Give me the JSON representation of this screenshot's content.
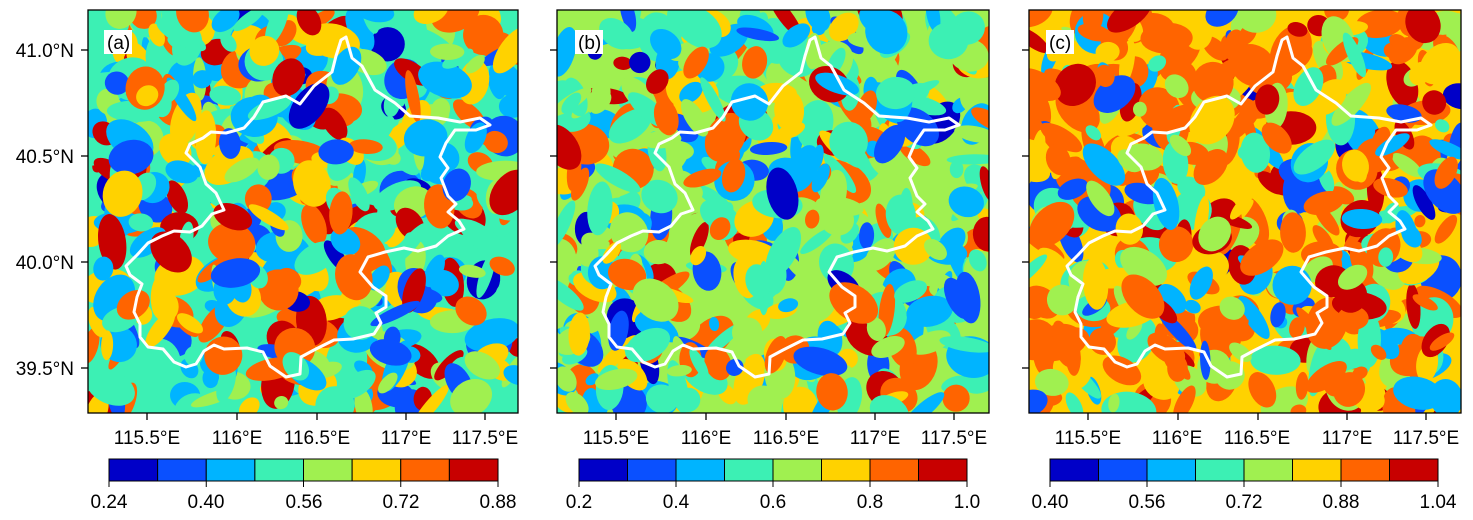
{
  "panels": [
    {
      "label": "(a)",
      "x_ticks": [
        "115.5°E",
        "116°E",
        "116.5°E",
        "117°E",
        "117.5°E"
      ],
      "y_ticks": [
        "41.0°N",
        "40.5°N",
        "40.0°N",
        "39.5°N"
      ],
      "colorbar_labels": [
        "0.24",
        "0.40",
        "0.56",
        "0.72",
        "0.88"
      ]
    },
    {
      "label": "(b)",
      "x_ticks": [
        "115.5°E",
        "116°E",
        "116.5°E",
        "117°E",
        "117.5°E"
      ],
      "y_ticks": [],
      "colorbar_labels": [
        "0.2",
        "0.4",
        "0.6",
        "0.8",
        "1.0"
      ]
    },
    {
      "label": "(c)",
      "x_ticks": [
        "115.5°E",
        "116°E",
        "116.5°E",
        "117°E",
        "117.5°E"
      ],
      "y_ticks": [],
      "colorbar_labels": [
        "0.40",
        "0.56",
        "0.72",
        "0.88",
        "1.04"
      ]
    }
  ],
  "colorbar_colors": [
    "#0000c8",
    "#0a50ff",
    "#00b4ff",
    "#3cf0b4",
    "#a0f050",
    "#ffd200",
    "#ff6400",
    "#c80000"
  ],
  "boundary_color": "#ffffff",
  "longitude_ticks": [
    115.5,
    116.0,
    116.5,
    117.0,
    117.5
  ],
  "latitude_ticks": [
    41.0,
    40.5,
    40.0,
    39.5
  ]
}
